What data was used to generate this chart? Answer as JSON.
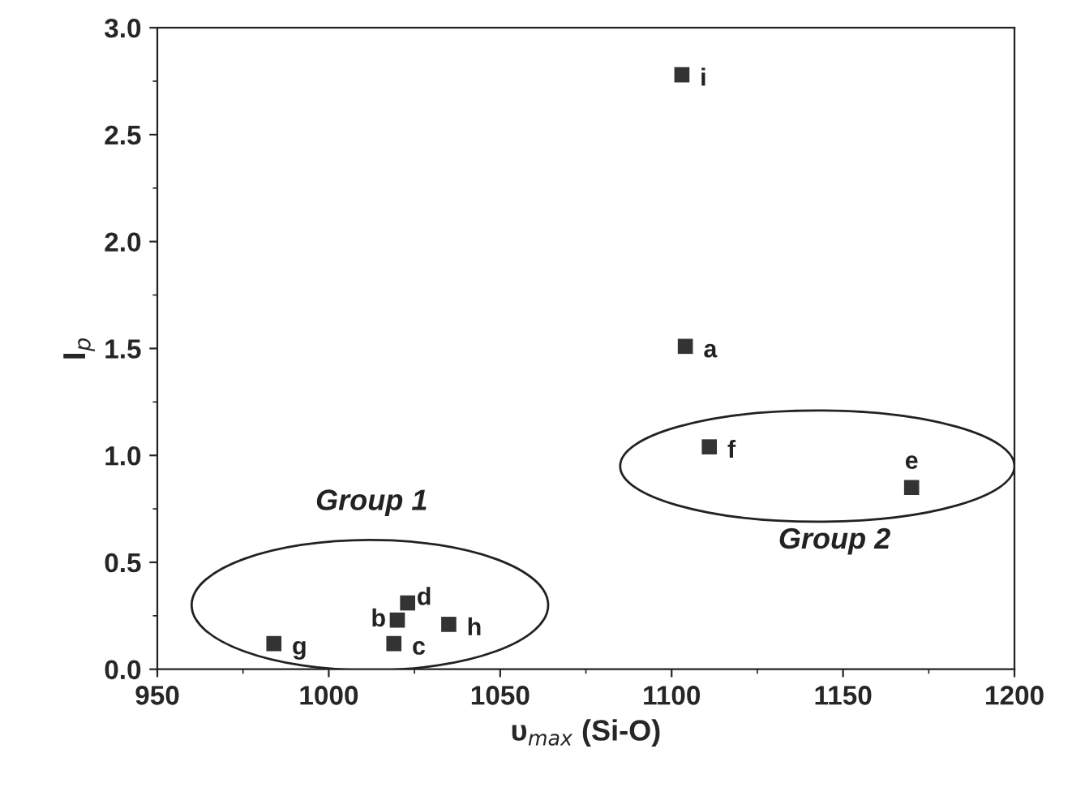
{
  "chart_data": {
    "type": "scatter",
    "xlabel": "υ$_{max}$ (Si-O)",
    "ylabel": "I$_{p}$",
    "xlim": [
      950,
      1200
    ],
    "ylim": [
      0,
      3.0
    ],
    "xticks": [
      950,
      1000,
      1050,
      1100,
      1150,
      1200
    ],
    "yticks": [
      {
        "value": 0,
        "label": "0.0"
      },
      0.5,
      {
        "value": 1,
        "label": "1.0"
      },
      1.5,
      {
        "value": 2,
        "label": "2.0"
      },
      2.5,
      {
        "value": 3,
        "label": "3.0"
      }
    ],
    "marker": "square",
    "grid": false,
    "legend": false,
    "series": [
      {
        "name": "a",
        "color": "#333333",
        "x": [
          1104
        ],
        "values": [
          1.51
        ]
      },
      {
        "name": "b",
        "color": "#333333",
        "x": [
          1020
        ],
        "values": [
          0.23
        ]
      },
      {
        "name": "c",
        "color": "#333333",
        "x": [
          1019
        ],
        "values": [
          0.12
        ]
      },
      {
        "name": "d",
        "color": "#333333",
        "x": [
          1023
        ],
        "values": [
          0.31
        ]
      },
      {
        "name": "e",
        "color": "#333333",
        "x": [
          1170
        ],
        "values": [
          0.85
        ]
      },
      {
        "name": "f",
        "color": "#333333",
        "x": [
          1111
        ],
        "values": [
          1.04
        ]
      },
      {
        "name": "g",
        "color": "#333333",
        "x": [
          984
        ],
        "values": [
          0.12
        ]
      },
      {
        "name": "h",
        "color": "#333333",
        "x": [
          1035
        ],
        "values": [
          0.21
        ]
      },
      {
        "name": "i",
        "color": "#333333",
        "x": [
          1103
        ],
        "values": [
          2.78
        ]
      }
    ],
    "annotations": [
      "Group 1",
      "Group 2"
    ]
  }
}
